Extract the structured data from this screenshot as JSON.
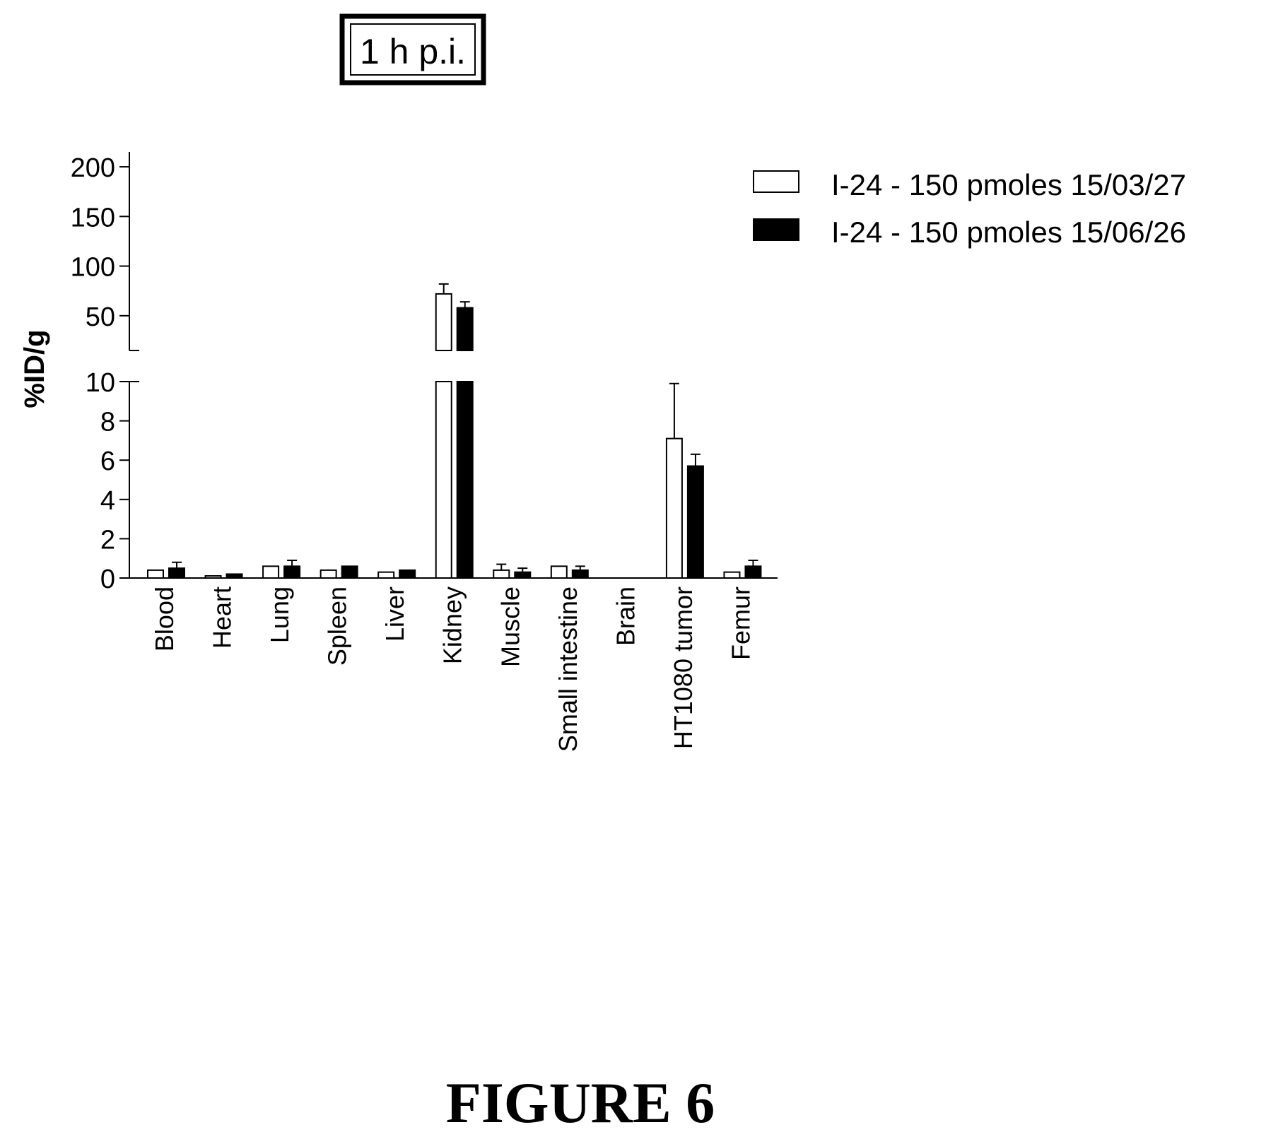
{
  "panel_label": "1 h p.i.",
  "figure_caption": "FIGURE 6",
  "chart_data": {
    "type": "bar",
    "title": "",
    "xlabel": "",
    "ylabel": "%ID/g",
    "categories": [
      "Blood",
      "Heart",
      "Lung",
      "Spleen",
      "Liver",
      "Kidney",
      "Muscle",
      "Small intestine",
      "Brain",
      "HT1080 tumor",
      "Femur"
    ],
    "series": [
      {
        "name": "I-24 - 150 pmoles 15/03/27",
        "fill": "#ffffff",
        "values": [
          0.4,
          0.1,
          0.6,
          0.4,
          0.3,
          72,
          0.4,
          0.6,
          0,
          7.1,
          0.3
        ],
        "errors": [
          0,
          0,
          0,
          0,
          0,
          10,
          0.3,
          0,
          0,
          2.8,
          0
        ]
      },
      {
        "name": "I-24 - 150 pmoles 15/06/26",
        "fill": "#000000",
        "values": [
          0.5,
          0.2,
          0.6,
          0.6,
          0.4,
          58,
          0.3,
          0.4,
          0,
          5.7,
          0.6
        ],
        "errors": [
          0.3,
          0,
          0.3,
          0,
          0,
          6,
          0.2,
          0.2,
          0,
          0.6,
          0.3
        ]
      }
    ],
    "axis_lower": {
      "range": [
        0,
        10
      ],
      "ticks": [
        "0",
        "2",
        "4",
        "6",
        "8",
        "10"
      ]
    },
    "axis_upper": {
      "range": [
        15,
        215
      ],
      "ticks": [
        "50",
        "100",
        "150",
        "200"
      ]
    },
    "legend_position": "top-right",
    "grid": false
  }
}
